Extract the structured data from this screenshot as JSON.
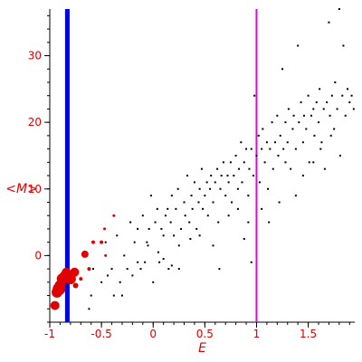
{
  "chart_data": {
    "type": "scatter",
    "title": "",
    "xlabel": "E",
    "ylabel": "<M>",
    "xlim": [
      -1.0,
      1.95
    ],
    "ylim": [
      -10,
      37
    ],
    "x_ticks": [
      -1,
      -0.5,
      0,
      0.5,
      1,
      1.5
    ],
    "x_tick_labels": [
      "-1",
      "-0.5",
      "0",
      "0.5",
      "1",
      "1.5"
    ],
    "y_ticks": [
      0,
      10,
      20,
      30
    ],
    "y_tick_labels": [
      "0",
      "10",
      "20",
      "30"
    ],
    "grid": false,
    "legend": "none",
    "axis_color": "#000000",
    "label_color": "#e00000",
    "vertical_lines": [
      {
        "x": -0.83,
        "color": "#0000e6",
        "style": "thick"
      },
      {
        "x": 1.0,
        "color": "#e600e6",
        "style": "thin"
      }
    ],
    "series": [
      {
        "color": "#e00000",
        "marker": "circle",
        "note": "red markers sized by weight",
        "points": [
          {
            "x": -0.95,
            "y": -7.5,
            "size": 5
          },
          {
            "x": -0.93,
            "y": -5.5,
            "size": 6
          },
          {
            "x": -0.91,
            "y": -5.0,
            "size": 7
          },
          {
            "x": -0.9,
            "y": -4.5,
            "size": 6
          },
          {
            "x": -0.88,
            "y": -3.5,
            "size": 6
          },
          {
            "x": -0.86,
            "y": -3.0,
            "size": 5
          },
          {
            "x": -0.84,
            "y": -2.5,
            "size": 5
          },
          {
            "x": -0.8,
            "y": -3.5,
            "size": 6
          },
          {
            "x": -0.76,
            "y": -2.5,
            "size": 5
          },
          {
            "x": -0.75,
            "y": -4.5,
            "size": 3
          },
          {
            "x": -0.7,
            "y": -3.5,
            "size": 2
          },
          {
            "x": -0.66,
            "y": 0.2,
            "size": 4
          },
          {
            "x": -0.62,
            "y": -2.0,
            "size": 2
          },
          {
            "x": -0.58,
            "y": 2.0,
            "size": 2
          },
          {
            "x": -0.5,
            "y": 2.0,
            "size": 2
          },
          {
            "x": -0.46,
            "y": 0.0,
            "size": 1.5
          },
          {
            "x": -0.47,
            "y": 4.0,
            "size": 1.5
          },
          {
            "x": -0.38,
            "y": 6.0,
            "size": 1.5
          }
        ]
      },
      {
        "color": "#000000",
        "marker": "dot",
        "points": [
          [
            -0.62,
            -8.0
          ],
          [
            -0.6,
            -6.0
          ],
          [
            -0.58,
            -2.0
          ],
          [
            -0.5,
            -4.0
          ],
          [
            -0.46,
            2.0
          ],
          [
            -0.44,
            -3.0
          ],
          [
            -0.4,
            -2.0
          ],
          [
            -0.38,
            -6.0
          ],
          [
            -0.35,
            3.0
          ],
          [
            -0.32,
            -4.0
          ],
          [
            -0.3,
            -6.0
          ],
          [
            -0.28,
            0.0
          ],
          [
            -0.25,
            -2.0
          ],
          [
            -0.22,
            5.0
          ],
          [
            -0.2,
            -3.0
          ],
          [
            -0.18,
            2.0
          ],
          [
            -0.15,
            4.0
          ],
          [
            -0.12,
            -2.0
          ],
          [
            -0.1,
            6.0
          ],
          [
            -0.08,
            -1.0
          ],
          [
            -0.06,
            2.0
          ],
          [
            -0.04,
            4.0
          ],
          [
            -0.02,
            9.0
          ],
          [
            0.0,
            -4.0
          ],
          [
            0.02,
            5.0
          ],
          [
            0.04,
            7.0
          ],
          [
            0.06,
            -1.0
          ],
          [
            0.08,
            4.0
          ],
          [
            0.1,
            3.0
          ],
          [
            0.12,
            6.0
          ],
          [
            0.14,
            7.0
          ],
          [
            0.15,
            -2.0
          ],
          [
            0.17,
            5.0
          ],
          [
            0.18,
            9.0
          ],
          [
            0.2,
            3.0
          ],
          [
            0.22,
            7.0
          ],
          [
            0.24,
            10.0
          ],
          [
            0.25,
            -2.0
          ],
          [
            0.27,
            4.0
          ],
          [
            0.3,
            8.0
          ],
          [
            0.31,
            6.0
          ],
          [
            0.33,
            12.0
          ],
          [
            0.35,
            5.0
          ],
          [
            0.37,
            9.0
          ],
          [
            0.38,
            7.0
          ],
          [
            0.4,
            11.0
          ],
          [
            0.42,
            4.0
          ],
          [
            0.44,
            8.0
          ],
          [
            0.45,
            10.0
          ],
          [
            0.47,
            13.0
          ],
          [
            0.48,
            7.0
          ],
          [
            0.5,
            9.0
          ],
          [
            0.52,
            11.0
          ],
          [
            0.53,
            6.0
          ],
          [
            0.55,
            10.0
          ],
          [
            0.56,
            12.0
          ],
          [
            0.58,
            8.0
          ],
          [
            0.6,
            11.0
          ],
          [
            0.62,
            13.0
          ],
          [
            0.63,
            5.0
          ],
          [
            0.65,
            10.0
          ],
          [
            0.66,
            12.0
          ],
          [
            0.68,
            14.0
          ],
          [
            0.7,
            9.0
          ],
          [
            0.72,
            12.0
          ],
          [
            0.73,
            11.0
          ],
          [
            0.75,
            14.0
          ],
          [
            0.76,
            8.0
          ],
          [
            0.78,
            12.0
          ],
          [
            0.8,
            15.0
          ],
          [
            0.82,
            10.0
          ],
          [
            0.83,
            13.0
          ],
          [
            0.85,
            17.0
          ],
          [
            0.86,
            11.0
          ],
          [
            0.88,
            14.0
          ],
          [
            0.9,
            16.0
          ],
          [
            0.92,
            9.0
          ],
          [
            0.93,
            13.0
          ],
          [
            0.95,
            16.0
          ],
          [
            0.97,
            12.0
          ],
          [
            0.98,
            24.0
          ],
          [
            1.0,
            15.0
          ],
          [
            1.02,
            18.0
          ],
          [
            1.03,
            11.0
          ],
          [
            1.05,
            16.0
          ],
          [
            1.06,
            19.0
          ],
          [
            1.08,
            14.0
          ],
          [
            1.1,
            17.0
          ],
          [
            1.11,
            10.0
          ],
          [
            1.13,
            16.0
          ],
          [
            1.15,
            20.0
          ],
          [
            1.16,
            13.0
          ],
          [
            1.18,
            17.0
          ],
          [
            1.2,
            21.0
          ],
          [
            1.21,
            15.0
          ],
          [
            1.23,
            18.0
          ],
          [
            1.25,
            28.0
          ],
          [
            1.26,
            16.0
          ],
          [
            1.28,
            20.0
          ],
          [
            1.3,
            17.0
          ],
          [
            1.31,
            22.0
          ],
          [
            1.33,
            13.0
          ],
          [
            1.35,
            19.0
          ],
          [
            1.36,
            21.0
          ],
          [
            1.38,
            16.0
          ],
          [
            1.4,
            31.5
          ],
          [
            1.41,
            20.0
          ],
          [
            1.43,
            23.0
          ],
          [
            1.45,
            17.0
          ],
          [
            1.46,
            21.0
          ],
          [
            1.48,
            19.0
          ],
          [
            1.5,
            24.0
          ],
          [
            1.51,
            14.0
          ],
          [
            1.53,
            21.0
          ],
          [
            1.55,
            22.0
          ],
          [
            1.56,
            18.0
          ],
          [
            1.58,
            23.0
          ],
          [
            1.6,
            20.0
          ],
          [
            1.61,
            25.0
          ],
          [
            1.63,
            17.0
          ],
          [
            1.65,
            22.0
          ],
          [
            1.66,
            13.0
          ],
          [
            1.68,
            23.0
          ],
          [
            1.7,
            35.0
          ],
          [
            1.71,
            21.0
          ],
          [
            1.73,
            24.0
          ],
          [
            1.75,
            19.0
          ],
          [
            1.76,
            26.0
          ],
          [
            1.78,
            22.0
          ],
          [
            1.8,
            37.0
          ],
          [
            1.81,
            15.0
          ],
          [
            1.83,
            24.0
          ],
          [
            1.84,
            31.5
          ],
          [
            1.86,
            21.0
          ],
          [
            1.88,
            25.0
          ],
          [
            1.9,
            23.0
          ],
          [
            1.92,
            24.0
          ],
          [
            1.94,
            22.0
          ],
          [
            -0.15,
            -1.0
          ],
          [
            0.05,
            0.5
          ],
          [
            0.18,
            -1.5
          ],
          [
            0.36,
            2.5
          ],
          [
            0.58,
            1.5
          ],
          [
            0.64,
            -2.0
          ],
          [
            0.88,
            2.5
          ],
          [
            0.95,
            -1.0
          ],
          [
            1.12,
            5.0
          ],
          [
            1.22,
            8.0
          ],
          [
            1.28,
            14.0
          ],
          [
            1.38,
            9.0
          ],
          [
            1.45,
            12.0
          ],
          [
            1.55,
            14.0
          ],
          [
            1.62,
            16.0
          ],
          [
            1.72,
            18.0
          ],
          [
            0.82,
            7.0
          ],
          [
            0.73,
            6.0
          ],
          [
            0.92,
            5.0
          ],
          [
            1.05,
            7.0
          ],
          [
            0.45,
            3.0
          ],
          [
            0.25,
            1.5
          ],
          [
            0.1,
            -0.5
          ],
          [
            -0.05,
            1.5
          ]
        ]
      }
    ]
  }
}
